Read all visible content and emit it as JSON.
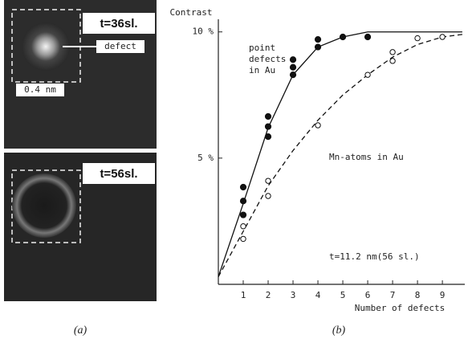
{
  "panel_a": {
    "top_label": "t=36sl.",
    "defect_label": "defect",
    "scale_label": "0.4 nm",
    "bottom_label": "t=56sl."
  },
  "captions": [
    "(a)",
    "(b)"
  ],
  "chart_data": {
    "type": "scatter",
    "y_label": "Contrast",
    "x_label": "Number of defects",
    "xlim": [
      0,
      9.9
    ],
    "ylim": [
      0,
      10.5
    ],
    "xticks": [
      1,
      2,
      3,
      4,
      5,
      6,
      7,
      8,
      9
    ],
    "yticks": [
      {
        "value": 5,
        "label": "5 %"
      },
      {
        "value": 10,
        "label": "10 %"
      }
    ],
    "annotations": [
      {
        "lines": [
          "point",
          "defects",
          "in Au"
        ]
      },
      {
        "lines": [
          "Mn-atoms in Au"
        ]
      },
      {
        "lines": [
          "t=11.2 nm(56 sl.)"
        ]
      }
    ],
    "series": [
      {
        "marker": "filled",
        "color": "#111",
        "x": [
          1,
          1,
          1,
          2,
          2,
          2,
          3,
          3,
          3,
          4,
          4,
          5,
          6
        ],
        "values": [
          3.85,
          3.3,
          2.75,
          6.65,
          6.25,
          5.85,
          8.9,
          8.6,
          8.3,
          9.7,
          9.4,
          9.8,
          9.8
        ]
      },
      {
        "marker": "open",
        "color": "#111",
        "x": [
          1,
          1,
          2,
          2,
          4,
          6,
          7,
          7,
          8,
          9
        ],
        "values": [
          2.3,
          1.8,
          4.1,
          3.5,
          6.3,
          8.3,
          9.2,
          8.85,
          9.75,
          9.8
        ]
      }
    ],
    "curves": [
      {
        "dashed": false,
        "color": "#111",
        "x": [
          0,
          1,
          2,
          3,
          4,
          5,
          6,
          7,
          8,
          9,
          9.8
        ],
        "values": [
          0.3,
          3.2,
          6.2,
          8.3,
          9.4,
          9.8,
          10,
          10,
          10,
          10,
          10
        ]
      },
      {
        "dashed": true,
        "color": "#111",
        "x": [
          0,
          1,
          2,
          3,
          4,
          5,
          6,
          7,
          8,
          9,
          9.8
        ],
        "values": [
          0.3,
          2.1,
          3.9,
          5.3,
          6.5,
          7.5,
          8.3,
          9.0,
          9.5,
          9.8,
          9.9
        ]
      }
    ]
  }
}
